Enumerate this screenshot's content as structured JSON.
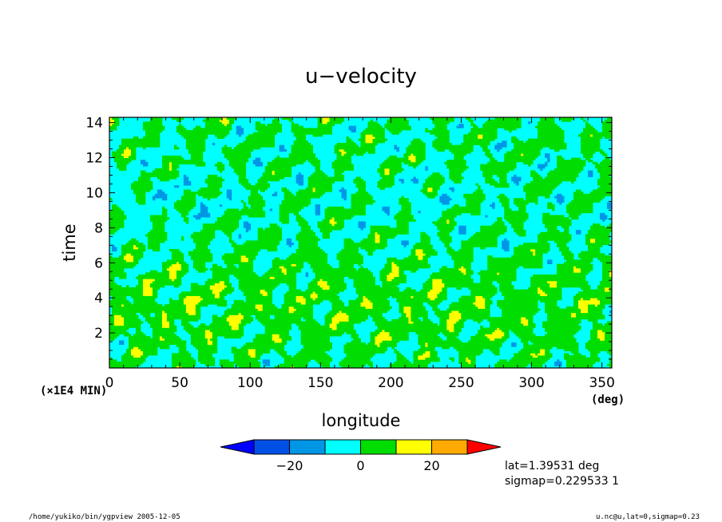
{
  "chart_data": {
    "type": "heatmap",
    "title": "u−velocity",
    "xlabel": "longitude",
    "ylabel": "time",
    "x_units": "(deg)",
    "y_units": "(×1E4 MIN)",
    "xlim": [
      0,
      357
    ],
    "ylim": [
      0,
      14.3
    ],
    "x_ticks": [
      0,
      50,
      100,
      150,
      200,
      250,
      300,
      350
    ],
    "y_ticks": [
      2,
      4,
      6,
      8,
      10,
      12,
      14
    ],
    "colorbar": {
      "levels": [
        -30,
        -20,
        -10,
        0,
        10,
        20,
        30
      ],
      "tick_labels": [
        "−20",
        "0",
        "20"
      ],
      "tick_values": [
        -20,
        0,
        20
      ],
      "colors": [
        "#0000ff",
        "#0050e6",
        "#0096e6",
        "#00ffff",
        "#00dd00",
        "#ffff00",
        "#ffaa00",
        "#ff0000"
      ]
    },
    "annotations": {
      "lat": "lat=1.39531 deg",
      "sigmap": "sigmap=0.229533 1"
    }
  },
  "footer": {
    "left": "/home/yukiko/bin/ygpview  2005-12-05",
    "right": "u.nc@u,lat=0,sigmap=0.23"
  }
}
